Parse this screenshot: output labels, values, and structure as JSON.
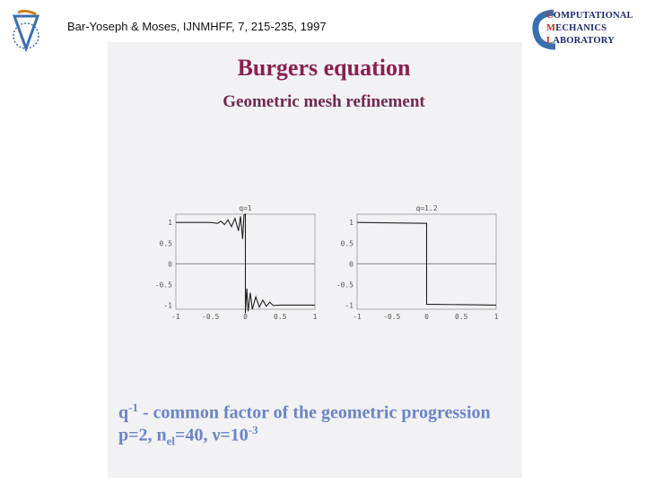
{
  "header": {
    "citation": "Bar-Yoseph & Moses, IJNMHFF, 7, 215-235, 1997"
  },
  "logo_right": {
    "line1": "OMPUTATIONAL",
    "line2": "ECHANICS",
    "line3": "ABORATORY",
    "initials": [
      "C",
      "M",
      "L"
    ]
  },
  "slide": {
    "title": "Burgers equation",
    "subtitle": "Geometric mesh refinement",
    "caption1": {
      "q": "q",
      "sup": "-1",
      "text": " - common factor of the geometric progression"
    },
    "caption2": {
      "a": "p=2, n",
      "sub": "el",
      "b": "=40, ν=10",
      "sup": "-3"
    }
  },
  "colors": {
    "title": "#8a2050",
    "caption": "#6b84c8",
    "scan_background": "#f2f2f4"
  },
  "chart_data": [
    {
      "type": "line",
      "title": "q=1",
      "xlim": [
        -1,
        1
      ],
      "ylim": [
        -1.1,
        1.2
      ],
      "xticks": [
        "-1",
        "-0.5",
        "0",
        "0.5",
        "1"
      ],
      "yticks": [
        "1",
        "0.5",
        "0",
        "-0.5",
        "-1"
      ],
      "x": [
        -1,
        -0.5,
        -0.4,
        -0.35,
        -0.3,
        -0.25,
        -0.2,
        -0.15,
        -0.1,
        -0.07,
        -0.04,
        -0.02,
        0,
        0,
        0.02,
        0.04,
        0.07,
        0.1,
        0.15,
        0.2,
        0.25,
        0.3,
        0.35,
        0.4,
        0.5,
        1
      ],
      "y": [
        1,
        1,
        0.98,
        1.03,
        0.95,
        1.06,
        0.9,
        1.1,
        0.8,
        1.15,
        0.6,
        1.18,
        1.2,
        -1.2,
        -0.6,
        -1.15,
        -0.7,
        -1.1,
        -0.8,
        -1.05,
        -0.88,
        -1.03,
        -0.93,
        -1.01,
        -1,
        -1
      ]
    },
    {
      "type": "line",
      "title": "q=1.2",
      "xlim": [
        -1,
        1
      ],
      "ylim": [
        -1.1,
        1.2
      ],
      "xticks": [
        "-1",
        "-0.5",
        "0",
        "0.5",
        "1"
      ],
      "yticks": [
        "1",
        "0.5",
        "0",
        "-0.5",
        "-1"
      ],
      "x": [
        -1,
        0,
        0,
        1
      ],
      "y": [
        1,
        0.98,
        -0.98,
        -1
      ]
    }
  ]
}
